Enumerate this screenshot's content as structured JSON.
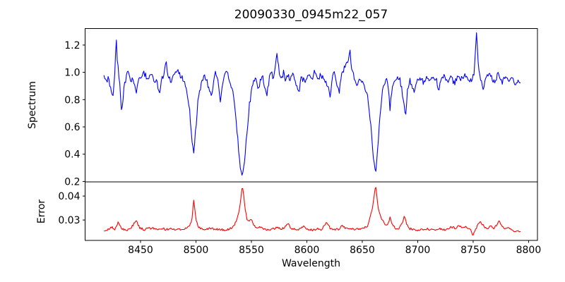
{
  "figure": {
    "background": "#ffffff",
    "axis_color": "#000000"
  },
  "chart_data": {
    "type": "line",
    "title": "20090330_0945m22_057",
    "xlabel": "Wavelength",
    "grid": false,
    "legend": null,
    "xlim": [
      8400,
      8808
    ],
    "xticks": [
      8450,
      8500,
      8550,
      8600,
      8650,
      8700,
      8750,
      8800
    ],
    "panels": [
      {
        "name": "spectrum",
        "ylabel": "Spectrum",
        "ylim": [
          0.197,
          1.321
        ],
        "yticks": [
          0.2,
          0.4,
          0.6,
          0.8,
          1.0,
          1.2
        ],
        "ytick_labels": [
          "0.2",
          "0.4",
          "0.6",
          "0.8",
          "1.0",
          "1.2"
        ],
        "line_color": "#0000ff",
        "noise": {
          "seed": 20090330,
          "amplitude": 0.022,
          "step": 0.75
        },
        "points": [
          [
            8417,
            0.99
          ],
          [
            8419,
            0.93
          ],
          [
            8421,
            0.96
          ],
          [
            8423,
            0.88
          ],
          [
            8425,
            0.82
          ],
          [
            8427,
            1.04
          ],
          [
            8428,
            1.27
          ],
          [
            8429,
            1.1
          ],
          [
            8431,
            0.94
          ],
          [
            8433,
            0.68
          ],
          [
            8435,
            0.88
          ],
          [
            8437,
            0.96
          ],
          [
            8439,
            1.02
          ],
          [
            8441,
            0.92
          ],
          [
            8443,
            0.97
          ],
          [
            8446,
            0.85
          ],
          [
            8448,
            0.96
          ],
          [
            8450,
            0.95
          ],
          [
            8453,
            1.0
          ],
          [
            8456,
            0.95
          ],
          [
            8459,
            0.99
          ],
          [
            8462,
            0.95
          ],
          [
            8465,
            0.92
          ],
          [
            8467,
            0.82
          ],
          [
            8469,
            0.95
          ],
          [
            8471,
            0.99
          ],
          [
            8473,
            1.1
          ],
          [
            8475,
            0.96
          ],
          [
            8478,
            0.93
          ],
          [
            8481,
            0.99
          ],
          [
            8484,
            1.0
          ],
          [
            8487,
            0.96
          ],
          [
            8490,
            0.93
          ],
          [
            8492,
            0.86
          ],
          [
            8494,
            0.74
          ],
          [
            8496,
            0.52
          ],
          [
            8498,
            0.4
          ],
          [
            8500,
            0.6
          ],
          [
            8502,
            0.8
          ],
          [
            8504,
            0.89
          ],
          [
            8506,
            0.95
          ],
          [
            8508,
            0.98
          ],
          [
            8510,
            0.93
          ],
          [
            8512,
            0.88
          ],
          [
            8514,
            0.8
          ],
          [
            8516,
            0.95
          ],
          [
            8518,
            1.0
          ],
          [
            8520,
            0.92
          ],
          [
            8522,
            0.78
          ],
          [
            8524,
            0.92
          ],
          [
            8526,
            0.97
          ],
          [
            8528,
            1.0
          ],
          [
            8530,
            0.93
          ],
          [
            8532,
            0.9
          ],
          [
            8534,
            0.82
          ],
          [
            8536,
            0.68
          ],
          [
            8538,
            0.48
          ],
          [
            8540,
            0.3
          ],
          [
            8542,
            0.25
          ],
          [
            8544,
            0.36
          ],
          [
            8546,
            0.56
          ],
          [
            8548,
            0.75
          ],
          [
            8550,
            0.86
          ],
          [
            8552,
            0.92
          ],
          [
            8554,
            0.96
          ],
          [
            8556,
            0.85
          ],
          [
            8558,
            0.94
          ],
          [
            8560,
            0.97
          ],
          [
            8562,
            0.9
          ],
          [
            8564,
            0.84
          ],
          [
            8566,
            0.95
          ],
          [
            8568,
            1.0
          ],
          [
            8570,
            0.96
          ],
          [
            8572,
            1.05
          ],
          [
            8573,
            1.15
          ],
          [
            8575,
            1.0
          ],
          [
            8577,
            0.95
          ],
          [
            8579,
            1.0
          ],
          [
            8581,
            0.93
          ],
          [
            8583,
            0.98
          ],
          [
            8585,
            0.95
          ],
          [
            8587,
            1.0
          ],
          [
            8589,
            0.94
          ],
          [
            8591,
            0.9
          ],
          [
            8593,
            0.86
          ],
          [
            8595,
            0.97
          ],
          [
            8598,
            0.93
          ],
          [
            8601,
            0.99
          ],
          [
            8604,
            0.95
          ],
          [
            8607,
            1.0
          ],
          [
            8610,
            0.96
          ],
          [
            8613,
            0.98
          ],
          [
            8616,
            0.95
          ],
          [
            8619,
            0.9
          ],
          [
            8621,
            0.82
          ],
          [
            8623,
            0.95
          ],
          [
            8625,
            1.0
          ],
          [
            8627,
            0.92
          ],
          [
            8629,
            0.85
          ],
          [
            8631,
            0.97
          ],
          [
            8633,
            1.02
          ],
          [
            8635,
            1.05
          ],
          [
            8637,
            1.08
          ],
          [
            8639,
            1.16
          ],
          [
            8640,
            1.05
          ],
          [
            8642,
            0.98
          ],
          [
            8644,
            0.93
          ],
          [
            8646,
            0.9
          ],
          [
            8648,
            0.95
          ],
          [
            8650,
            0.92
          ],
          [
            8652,
            0.88
          ],
          [
            8654,
            0.85
          ],
          [
            8656,
            0.75
          ],
          [
            8658,
            0.58
          ],
          [
            8660,
            0.38
          ],
          [
            8662,
            0.27
          ],
          [
            8664,
            0.44
          ],
          [
            8666,
            0.68
          ],
          [
            8668,
            0.85
          ],
          [
            8670,
            0.92
          ],
          [
            8672,
            0.95
          ],
          [
            8674,
            0.85
          ],
          [
            8675,
            0.74
          ],
          [
            8677,
            0.9
          ],
          [
            8679,
            0.96
          ],
          [
            8681,
            0.93
          ],
          [
            8683,
            0.98
          ],
          [
            8685,
            0.9
          ],
          [
            8687,
            0.8
          ],
          [
            8689,
            0.69
          ],
          [
            8691,
            0.88
          ],
          [
            8693,
            0.95
          ],
          [
            8695,
            0.9
          ],
          [
            8697,
            0.86
          ],
          [
            8699,
            0.93
          ],
          [
            8702,
            0.96
          ],
          [
            8705,
            0.93
          ],
          [
            8708,
            0.97
          ],
          [
            8711,
            0.93
          ],
          [
            8714,
            0.96
          ],
          [
            8717,
            0.94
          ],
          [
            8719,
            0.86
          ],
          [
            8721,
            0.94
          ],
          [
            8724,
            0.97
          ],
          [
            8727,
            0.94
          ],
          [
            8730,
            0.97
          ],
          [
            8733,
            0.92
          ],
          [
            8736,
            0.96
          ],
          [
            8739,
            0.95
          ],
          [
            8742,
            0.98
          ],
          [
            8745,
            0.95
          ],
          [
            8748,
            0.93
          ],
          [
            8751,
            1.0
          ],
          [
            8753,
            1.28
          ],
          [
            8755,
            1.02
          ],
          [
            8757,
            0.95
          ],
          [
            8759,
            0.88
          ],
          [
            8761,
            0.96
          ],
          [
            8764,
            0.99
          ],
          [
            8767,
            0.95
          ],
          [
            8770,
            0.93
          ],
          [
            8773,
            1.0
          ],
          [
            8776,
            0.93
          ],
          [
            8779,
            0.97
          ],
          [
            8782,
            0.94
          ],
          [
            8785,
            0.97
          ],
          [
            8788,
            0.92
          ],
          [
            8791,
            0.95
          ],
          [
            8793,
            0.93
          ]
        ]
      },
      {
        "name": "error",
        "ylabel": "Error",
        "ylim": [
          0.0215,
          0.0459
        ],
        "yticks": [
          0.03,
          0.04
        ],
        "ytick_labels": [
          "0.03",
          "0.04"
        ],
        "line_color": "#ff0000",
        "noise": {
          "seed": 945,
          "amplitude": 0.00045,
          "step": 0.75
        },
        "points": [
          [
            8417,
            0.0255
          ],
          [
            8421,
            0.026
          ],
          [
            8424,
            0.0272
          ],
          [
            8427,
            0.026
          ],
          [
            8430,
            0.0295
          ],
          [
            8433,
            0.0262
          ],
          [
            8437,
            0.0258
          ],
          [
            8441,
            0.0262
          ],
          [
            8444,
            0.0285
          ],
          [
            8446,
            0.0302
          ],
          [
            8449,
            0.0268
          ],
          [
            8453,
            0.026
          ],
          [
            8457,
            0.0264
          ],
          [
            8461,
            0.0268
          ],
          [
            8465,
            0.026
          ],
          [
            8469,
            0.0266
          ],
          [
            8473,
            0.026
          ],
          [
            8477,
            0.0263
          ],
          [
            8481,
            0.0258
          ],
          [
            8485,
            0.0261
          ],
          [
            8489,
            0.0263
          ],
          [
            8493,
            0.027
          ],
          [
            8496,
            0.029
          ],
          [
            8498,
            0.038
          ],
          [
            8500,
            0.0305
          ],
          [
            8502,
            0.0272
          ],
          [
            8505,
            0.0264
          ],
          [
            8509,
            0.026
          ],
          [
            8513,
            0.0266
          ],
          [
            8517,
            0.026
          ],
          [
            8521,
            0.0263
          ],
          [
            8525,
            0.0258
          ],
          [
            8529,
            0.0261
          ],
          [
            8533,
            0.0268
          ],
          [
            8536,
            0.029
          ],
          [
            8539,
            0.034
          ],
          [
            8542,
            0.0445
          ],
          [
            8544,
            0.036
          ],
          [
            8546,
            0.0305
          ],
          [
            8548,
            0.0295
          ],
          [
            8550,
            0.0304
          ],
          [
            8552,
            0.0282
          ],
          [
            8555,
            0.0266
          ],
          [
            8558,
            0.0272
          ],
          [
            8561,
            0.0262
          ],
          [
            8565,
            0.026
          ],
          [
            8569,
            0.0263
          ],
          [
            8573,
            0.0268
          ],
          [
            8577,
            0.0261
          ],
          [
            8581,
            0.0274
          ],
          [
            8583,
            0.0284
          ],
          [
            8586,
            0.0264
          ],
          [
            8590,
            0.026
          ],
          [
            8594,
            0.0263
          ],
          [
            8597,
            0.0275
          ],
          [
            8601,
            0.026
          ],
          [
            8605,
            0.0258
          ],
          [
            8609,
            0.0263
          ],
          [
            8613,
            0.0261
          ],
          [
            8616,
            0.028
          ],
          [
            8618,
            0.0288
          ],
          [
            8621,
            0.0266
          ],
          [
            8625,
            0.026
          ],
          [
            8629,
            0.0263
          ],
          [
            8632,
            0.028
          ],
          [
            8635,
            0.0265
          ],
          [
            8639,
            0.0261
          ],
          [
            8643,
            0.0263
          ],
          [
            8647,
            0.026
          ],
          [
            8651,
            0.0266
          ],
          [
            8655,
            0.0274
          ],
          [
            8657,
            0.031
          ],
          [
            8659,
            0.034
          ],
          [
            8662,
            0.0446
          ],
          [
            8664,
            0.036
          ],
          [
            8666,
            0.032
          ],
          [
            8668,
            0.03
          ],
          [
            8670,
            0.0285
          ],
          [
            8672,
            0.0278
          ],
          [
            8674,
            0.029
          ],
          [
            8675,
            0.0315
          ],
          [
            8677,
            0.0282
          ],
          [
            8680,
            0.0266
          ],
          [
            8683,
            0.0262
          ],
          [
            8686,
            0.0288
          ],
          [
            8688,
            0.0318
          ],
          [
            8690,
            0.0286
          ],
          [
            8693,
            0.0264
          ],
          [
            8697,
            0.026
          ],
          [
            8701,
            0.0258
          ],
          [
            8705,
            0.0261
          ],
          [
            8709,
            0.0263
          ],
          [
            8713,
            0.0259
          ],
          [
            8717,
            0.0261
          ],
          [
            8721,
            0.0263
          ],
          [
            8725,
            0.0259
          ],
          [
            8728,
            0.0266
          ],
          [
            8731,
            0.0271
          ],
          [
            8734,
            0.0263
          ],
          [
            8737,
            0.0276
          ],
          [
            8740,
            0.0269
          ],
          [
            8743,
            0.0273
          ],
          [
            8746,
            0.0263
          ],
          [
            8748,
            0.0255
          ],
          [
            8750,
            0.0236
          ],
          [
            8752,
            0.026
          ],
          [
            8755,
            0.0286
          ],
          [
            8757,
            0.0293
          ],
          [
            8760,
            0.0269
          ],
          [
            8763,
            0.0263
          ],
          [
            8766,
            0.0276
          ],
          [
            8769,
            0.0266
          ],
          [
            8772,
            0.0286
          ],
          [
            8774,
            0.0296
          ],
          [
            8776,
            0.0271
          ],
          [
            8779,
            0.0263
          ],
          [
            8782,
            0.0269
          ],
          [
            8785,
            0.0256
          ],
          [
            8788,
            0.0251
          ],
          [
            8791,
            0.0253
          ],
          [
            8793,
            0.025
          ]
        ]
      }
    ]
  }
}
